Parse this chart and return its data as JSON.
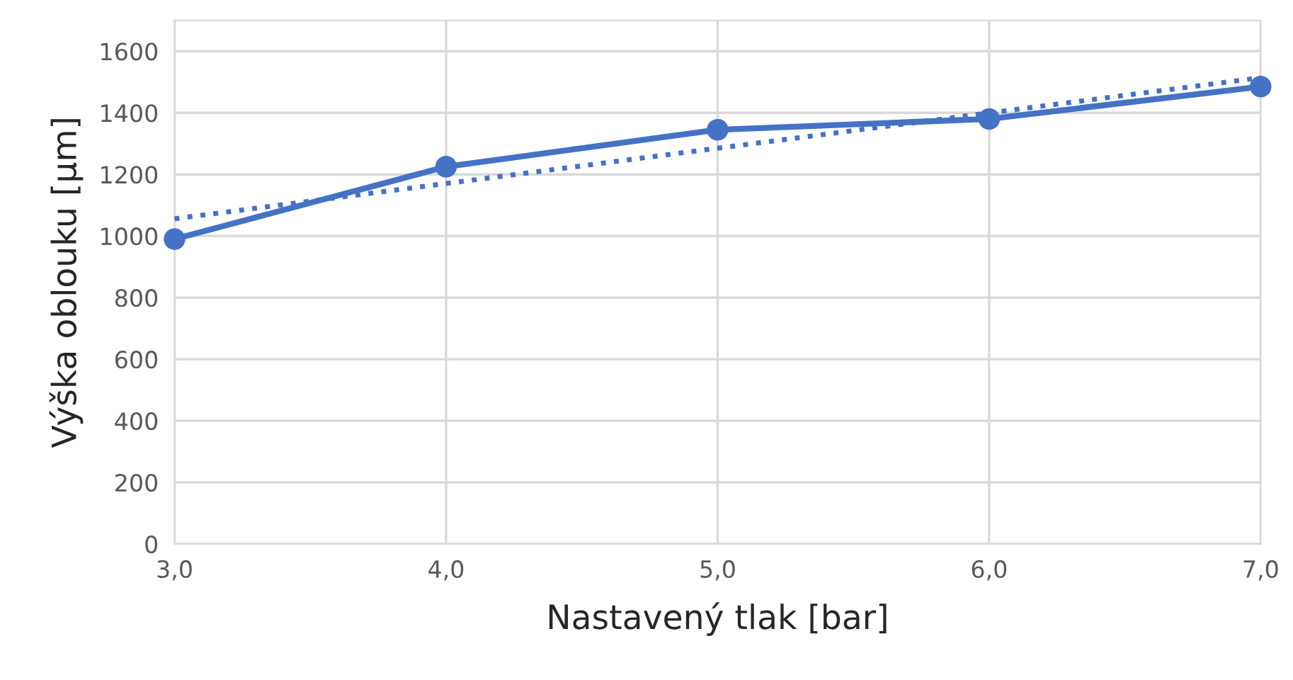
{
  "chart_data": {
    "type": "line",
    "xlabel": "Nastavený tlak [bar]",
    "ylabel": "Výška oblouku [µm]",
    "x": [
      3,
      4,
      5,
      6,
      7
    ],
    "series": [
      {
        "color": "#4472c4",
        "values": [
          990,
          1225,
          1345,
          1380,
          1485
        ],
        "marker": "circle",
        "line_style": "solid"
      },
      {
        "color": "#4472c4",
        "x": [
          3,
          7
        ],
        "values": [
          1056,
          1514
        ],
        "marker": "none",
        "line_style": "dotted"
      }
    ],
    "xlim": [
      3,
      7
    ],
    "ylim": [
      0,
      1700
    ],
    "xticks": [
      {
        "value": 3,
        "label": "3,0"
      },
      {
        "value": 4,
        "label": "4,0"
      },
      {
        "value": 5,
        "label": "5,0"
      },
      {
        "value": 6,
        "label": "6,0"
      },
      {
        "value": 7,
        "label": "7,0"
      }
    ],
    "yticks": [
      0,
      200,
      400,
      600,
      800,
      1000,
      1200,
      1400,
      1600
    ],
    "grid": true
  }
}
